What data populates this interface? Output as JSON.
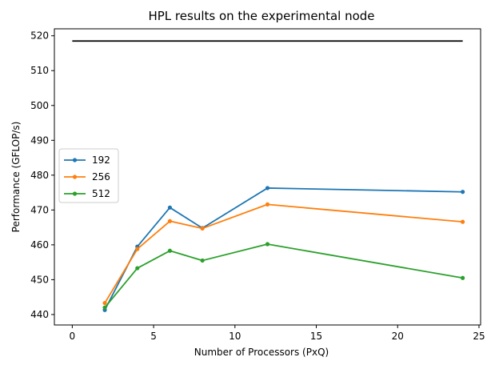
{
  "chart_data": {
    "type": "line",
    "title": "HPL results on the experimental node",
    "xlabel": "Number of Processors (PxQ)",
    "ylabel": "Performance (GFLOP/s)",
    "xlim": [
      -1.1,
      25.1
    ],
    "ylim": [
      437.0,
      522.0
    ],
    "xticks": [
      0,
      5,
      10,
      15,
      20,
      25
    ],
    "yticks": [
      440,
      450,
      460,
      470,
      480,
      490,
      500,
      510,
      520
    ],
    "grid": false,
    "legend_position": "center-left",
    "reference_line": {
      "x": [
        0,
        24
      ],
      "y": 518.5,
      "color": "#000000"
    },
    "x": [
      2,
      4,
      6,
      8,
      12,
      24
    ],
    "series": [
      {
        "name": "192",
        "color": "#1f77b4",
        "values": [
          441.3,
          459.5,
          470.7,
          464.8,
          476.3,
          475.2
        ]
      },
      {
        "name": "256",
        "color": "#ff7f0e",
        "values": [
          443.3,
          458.8,
          466.8,
          464.7,
          471.6,
          466.6
        ]
      },
      {
        "name": "512",
        "color": "#2ca02c",
        "values": [
          442.0,
          453.3,
          458.3,
          455.5,
          460.2,
          450.5
        ]
      }
    ]
  }
}
